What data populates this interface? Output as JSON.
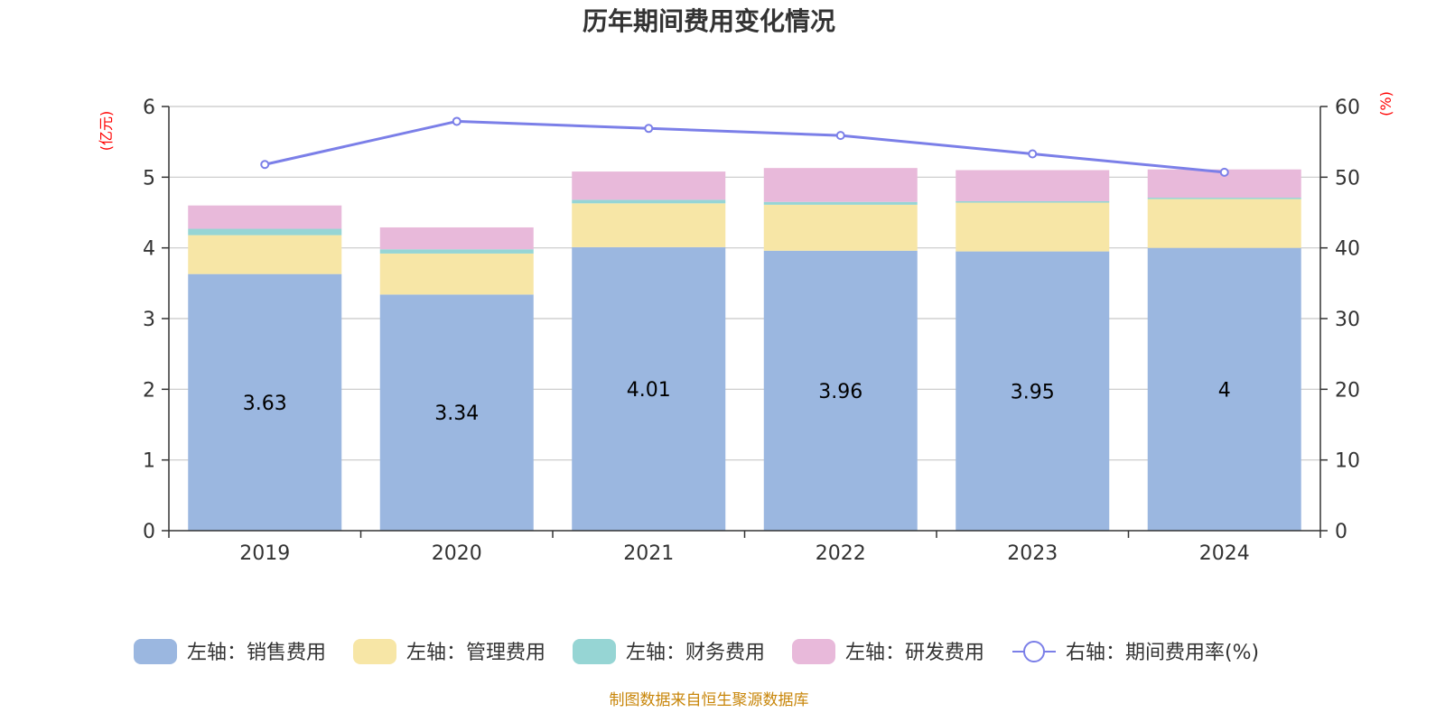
{
  "chart_data": {
    "type": "bar",
    "title": "历年期间费用变化情况",
    "categories": [
      "2019",
      "2020",
      "2021",
      "2022",
      "2023",
      "2024"
    ],
    "y_left": {
      "unit": "(亿元)",
      "ylim": [
        0,
        6
      ],
      "ticks": [
        "0",
        "1",
        "2",
        "3",
        "4",
        "5",
        "6"
      ]
    },
    "y_right": {
      "unit": "(%)",
      "ylim": [
        0,
        60
      ],
      "ticks": [
        "0",
        "10",
        "20",
        "30",
        "40",
        "50",
        "60"
      ]
    },
    "stacked": true,
    "grid": true,
    "legend_position": "bottom",
    "series": [
      {
        "name": "左轴：销售费用",
        "type": "bar",
        "axis": "left",
        "color": "#9bb7e0",
        "values": [
          3.63,
          3.34,
          4.01,
          3.96,
          3.95,
          4.0
        ],
        "labels": [
          "3.63",
          "3.34",
          "4.01",
          "3.96",
          "3.95",
          "4"
        ]
      },
      {
        "name": "左轴：管理费用",
        "type": "bar",
        "axis": "left",
        "color": "#f7e6a6",
        "values": [
          0.55,
          0.58,
          0.62,
          0.65,
          0.69,
          0.69
        ]
      },
      {
        "name": "左轴：财务费用",
        "type": "bar",
        "axis": "left",
        "color": "#96d5d4",
        "values": [
          0.09,
          0.06,
          0.05,
          0.04,
          0.02,
          0.02
        ]
      },
      {
        "name": "左轴：研发费用",
        "type": "bar",
        "axis": "left",
        "color": "#e8b9da",
        "values": [
          0.33,
          0.31,
          0.4,
          0.48,
          0.44,
          0.4
        ]
      },
      {
        "name": "右轴：期间费用率(%)",
        "type": "line",
        "axis": "right",
        "color": "#7b7fe8",
        "values": [
          51.8,
          57.9,
          56.9,
          55.9,
          53.3,
          50.7
        ]
      }
    ]
  },
  "footer": {
    "source": "制图数据来自恒生聚源数据库"
  }
}
